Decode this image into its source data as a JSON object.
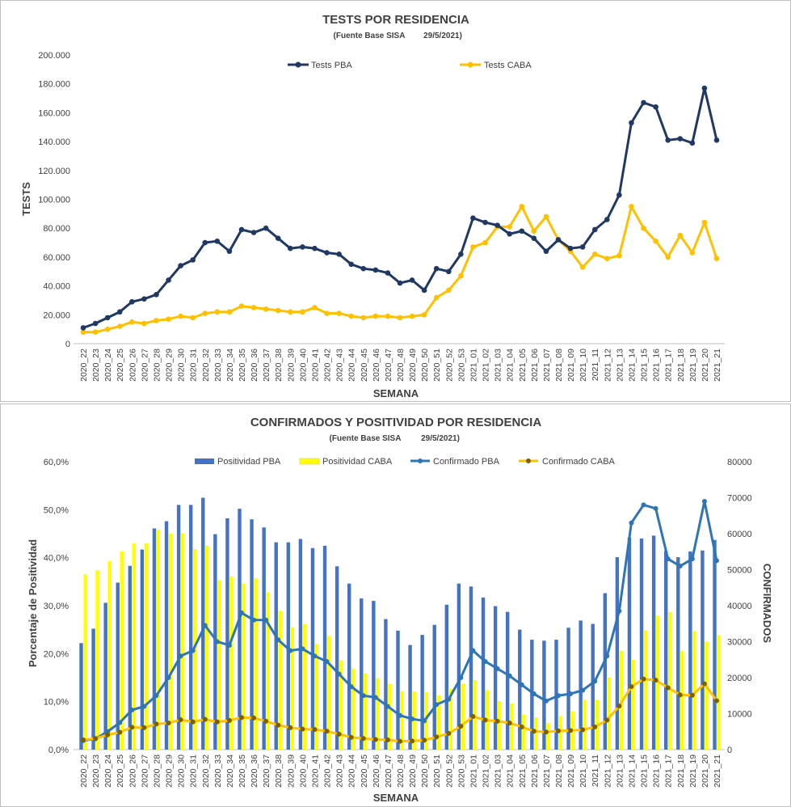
{
  "chart_data": [
    {
      "type": "line",
      "title": "TESTS POR RESIDENCIA",
      "subtitle_source": "(Fuente Base SISA",
      "subtitle_date": "29/5/2021)",
      "xlabel": "SEMANA",
      "ylabel": "TESTS",
      "ylim": [
        0,
        200000
      ],
      "yticks": [
        "0",
        "20.000",
        "40.000",
        "60.000",
        "80.000",
        "100.000",
        "120.000",
        "140.000",
        "160.000",
        "180.000",
        "200.000"
      ],
      "legend_position": "top",
      "grid": false,
      "x": [
        "2020_22",
        "2020_23",
        "2020_24",
        "2020_25",
        "2020_26",
        "2020_27",
        "2020_28",
        "2020_29",
        "2020_30",
        "2020_31",
        "2020_32",
        "2020_33",
        "2020_34",
        "2020_35",
        "2020_36",
        "2020_37",
        "2020_38",
        "2020_39",
        "2020_40",
        "2020_41",
        "2020_42",
        "2020_43",
        "2020_44",
        "2020_45",
        "2020_46",
        "2020_47",
        "2020_48",
        "2020_49",
        "2020_50",
        "2020_51",
        "2020_52",
        "2020_53",
        "2021_01",
        "2021_02",
        "2021_03",
        "2021_04",
        "2021_05",
        "2021_06",
        "2021_07",
        "2021_08",
        "2021_09",
        "2021_10",
        "2021_11",
        "2021_12",
        "2021_13",
        "2021_14",
        "2021_15",
        "2021_16",
        "2021_17",
        "2021_18",
        "2021_19",
        "2021_20",
        "2021_21"
      ],
      "series": [
        {
          "name": "Tests PBA",
          "color": "#1f3864",
          "values": [
            11000,
            14000,
            18000,
            22000,
            29000,
            31000,
            34000,
            44000,
            54000,
            58000,
            70000,
            71000,
            64000,
            79000,
            77000,
            80000,
            73000,
            66000,
            67000,
            66000,
            63000,
            62000,
            55000,
            52000,
            51000,
            49000,
            42000,
            44000,
            37000,
            52000,
            50000,
            62000,
            87000,
            84000,
            82000,
            76000,
            78000,
            73000,
            64000,
            72000,
            66000,
            67000,
            79000,
            86000,
            103000,
            153000,
            167000,
            164000,
            141000,
            142000,
            139000,
            177000,
            141000
          ]
        },
        {
          "name": "Tests CABA",
          "color": "#ffc000",
          "values": [
            8000,
            8000,
            10000,
            12000,
            15000,
            14000,
            16000,
            17000,
            19000,
            18000,
            21000,
            22000,
            22000,
            26000,
            25000,
            24000,
            23000,
            22000,
            22000,
            25000,
            21000,
            21000,
            19000,
            18000,
            19000,
            19000,
            18000,
            19000,
            20000,
            32000,
            37000,
            47000,
            67000,
            70000,
            81000,
            81000,
            95000,
            78000,
            88000,
            72000,
            64000,
            53000,
            62000,
            59000,
            61000,
            95000,
            80000,
            71000,
            60000,
            75000,
            63000,
            84000,
            59000
          ]
        }
      ]
    },
    {
      "type": "bar+line",
      "title": "CONFIRMADOS Y POSITIVIDAD POR RESIDENCIA",
      "subtitle_source": "(Fuente Base SISA",
      "subtitle_date": "29/5/2021)",
      "xlabel": "SEMANA",
      "ylabel_left": "Porcentaje de Positividad",
      "ylabel_right": "CONFIRMADOS",
      "ylim_left": [
        0,
        60
      ],
      "ylim_right": [
        0,
        80000
      ],
      "yticks_left": [
        "0,0%",
        "10,0%",
        "20,0%",
        "30,0%",
        "40,0%",
        "50,0%",
        "60,0%"
      ],
      "yticks_right": [
        "0",
        "10000",
        "20000",
        "30000",
        "40000",
        "50000",
        "60000",
        "70000",
        "80000"
      ],
      "legend_position": "top",
      "grid": false,
      "x": [
        "2020_22",
        "2020_23",
        "2020_24",
        "2020_25",
        "2020_26",
        "2020_27",
        "2020_28",
        "2020_29",
        "2020_30",
        "2020_31",
        "2020_32",
        "2020_33",
        "2020_34",
        "2020_35",
        "2020_36",
        "2020_37",
        "2020_38",
        "2020_39",
        "2020_40",
        "2020_41",
        "2020_42",
        "2020_43",
        "2020_44",
        "2020_45",
        "2020_46",
        "2020_47",
        "2020_48",
        "2020_49",
        "2020_50",
        "2020_51",
        "2020_52",
        "2020_53",
        "2021_01",
        "2021_02",
        "2021_03",
        "2021_04",
        "2021_05",
        "2021_06",
        "2021_07",
        "2021_08",
        "2021_09",
        "2021_10",
        "2021_11",
        "2021_12",
        "2021_13",
        "2021_14",
        "2021_15",
        "2021_16",
        "2021_17",
        "2021_18",
        "2021_19",
        "2021_20",
        "2021_21"
      ],
      "bar_series": [
        {
          "name": "Positividad PBA",
          "color": "#4472c4",
          "values": [
            22.2,
            25.2,
            30.6,
            34.8,
            38.3,
            41.7,
            46.1,
            47.6,
            51.0,
            51.0,
            52.5,
            44.9,
            48.2,
            50.2,
            48.0,
            46.3,
            43.2,
            43.2,
            43.9,
            42.0,
            42.5,
            38.2,
            34.6,
            31.5,
            31.0,
            27.2,
            24.8,
            21.8,
            23.9,
            26.0,
            30.2,
            34.6,
            34.0,
            31.7,
            29.9,
            28.7,
            25.0,
            22.9,
            22.7,
            22.9,
            25.4,
            26.9,
            26.2,
            32.6,
            40.1,
            44.2,
            44.0,
            44.6,
            41.4,
            40.1,
            41.3,
            41.5,
            43.7
          ]
        },
        {
          "name": "Positividad CABA",
          "color": "#ffff00",
          "values": [
            36.5,
            37.4,
            39.3,
            41.3,
            43.0,
            43.0,
            45.8,
            45.0,
            45.1,
            41.8,
            42.5,
            35.3,
            36.1,
            34.6,
            35.7,
            32.8,
            28.9,
            25.5,
            26.2,
            22.0,
            23.7,
            18.6,
            16.9,
            15.9,
            14.9,
            13.7,
            12.2,
            12.1,
            12.0,
            11.3,
            12.7,
            13.7,
            14.5,
            12.4,
            10.1,
            9.6,
            7.3,
            6.7,
            5.5,
            7.0,
            8.0,
            10.4,
            10.4,
            15.0,
            20.6,
            18.7,
            24.9,
            27.9,
            28.7,
            20.6,
            24.7,
            22.5,
            23.9
          ]
        }
      ],
      "line_series": [
        {
          "name": "Confirmado PBA",
          "color": "#2e75b6",
          "values": [
            2500,
            3000,
            5000,
            7500,
            11000,
            12000,
            15000,
            20000,
            26000,
            27500,
            34500,
            30000,
            29000,
            38000,
            36000,
            36000,
            30500,
            27500,
            28000,
            26000,
            24500,
            21000,
            17500,
            15000,
            14500,
            12000,
            9500,
            8500,
            8000,
            12500,
            14000,
            20000,
            27500,
            24500,
            22500,
            20500,
            18000,
            15500,
            13500,
            15000,
            15500,
            16500,
            19000,
            26000,
            38500,
            63000,
            68000,
            67000,
            53000,
            51000,
            53000,
            69000,
            52500
          ]
        },
        {
          "name": "Confirmado CABA",
          "color": "#ffc000",
          "marker_color": "#7f6000",
          "values": [
            2700,
            3100,
            4100,
            4800,
            6200,
            6100,
            7100,
            7400,
            8300,
            7700,
            8400,
            7700,
            8100,
            8900,
            8800,
            7900,
            6800,
            6100,
            5700,
            5600,
            5100,
            4300,
            3400,
            3100,
            2800,
            2700,
            2300,
            2400,
            2600,
            3500,
            4500,
            6500,
            9200,
            8200,
            7900,
            7400,
            6300,
            5100,
            4900,
            5200,
            5300,
            5500,
            6300,
            8200,
            12100,
            17500,
            19600,
            19300,
            17200,
            15200,
            15100,
            18300,
            13600
          ]
        }
      ]
    }
  ]
}
